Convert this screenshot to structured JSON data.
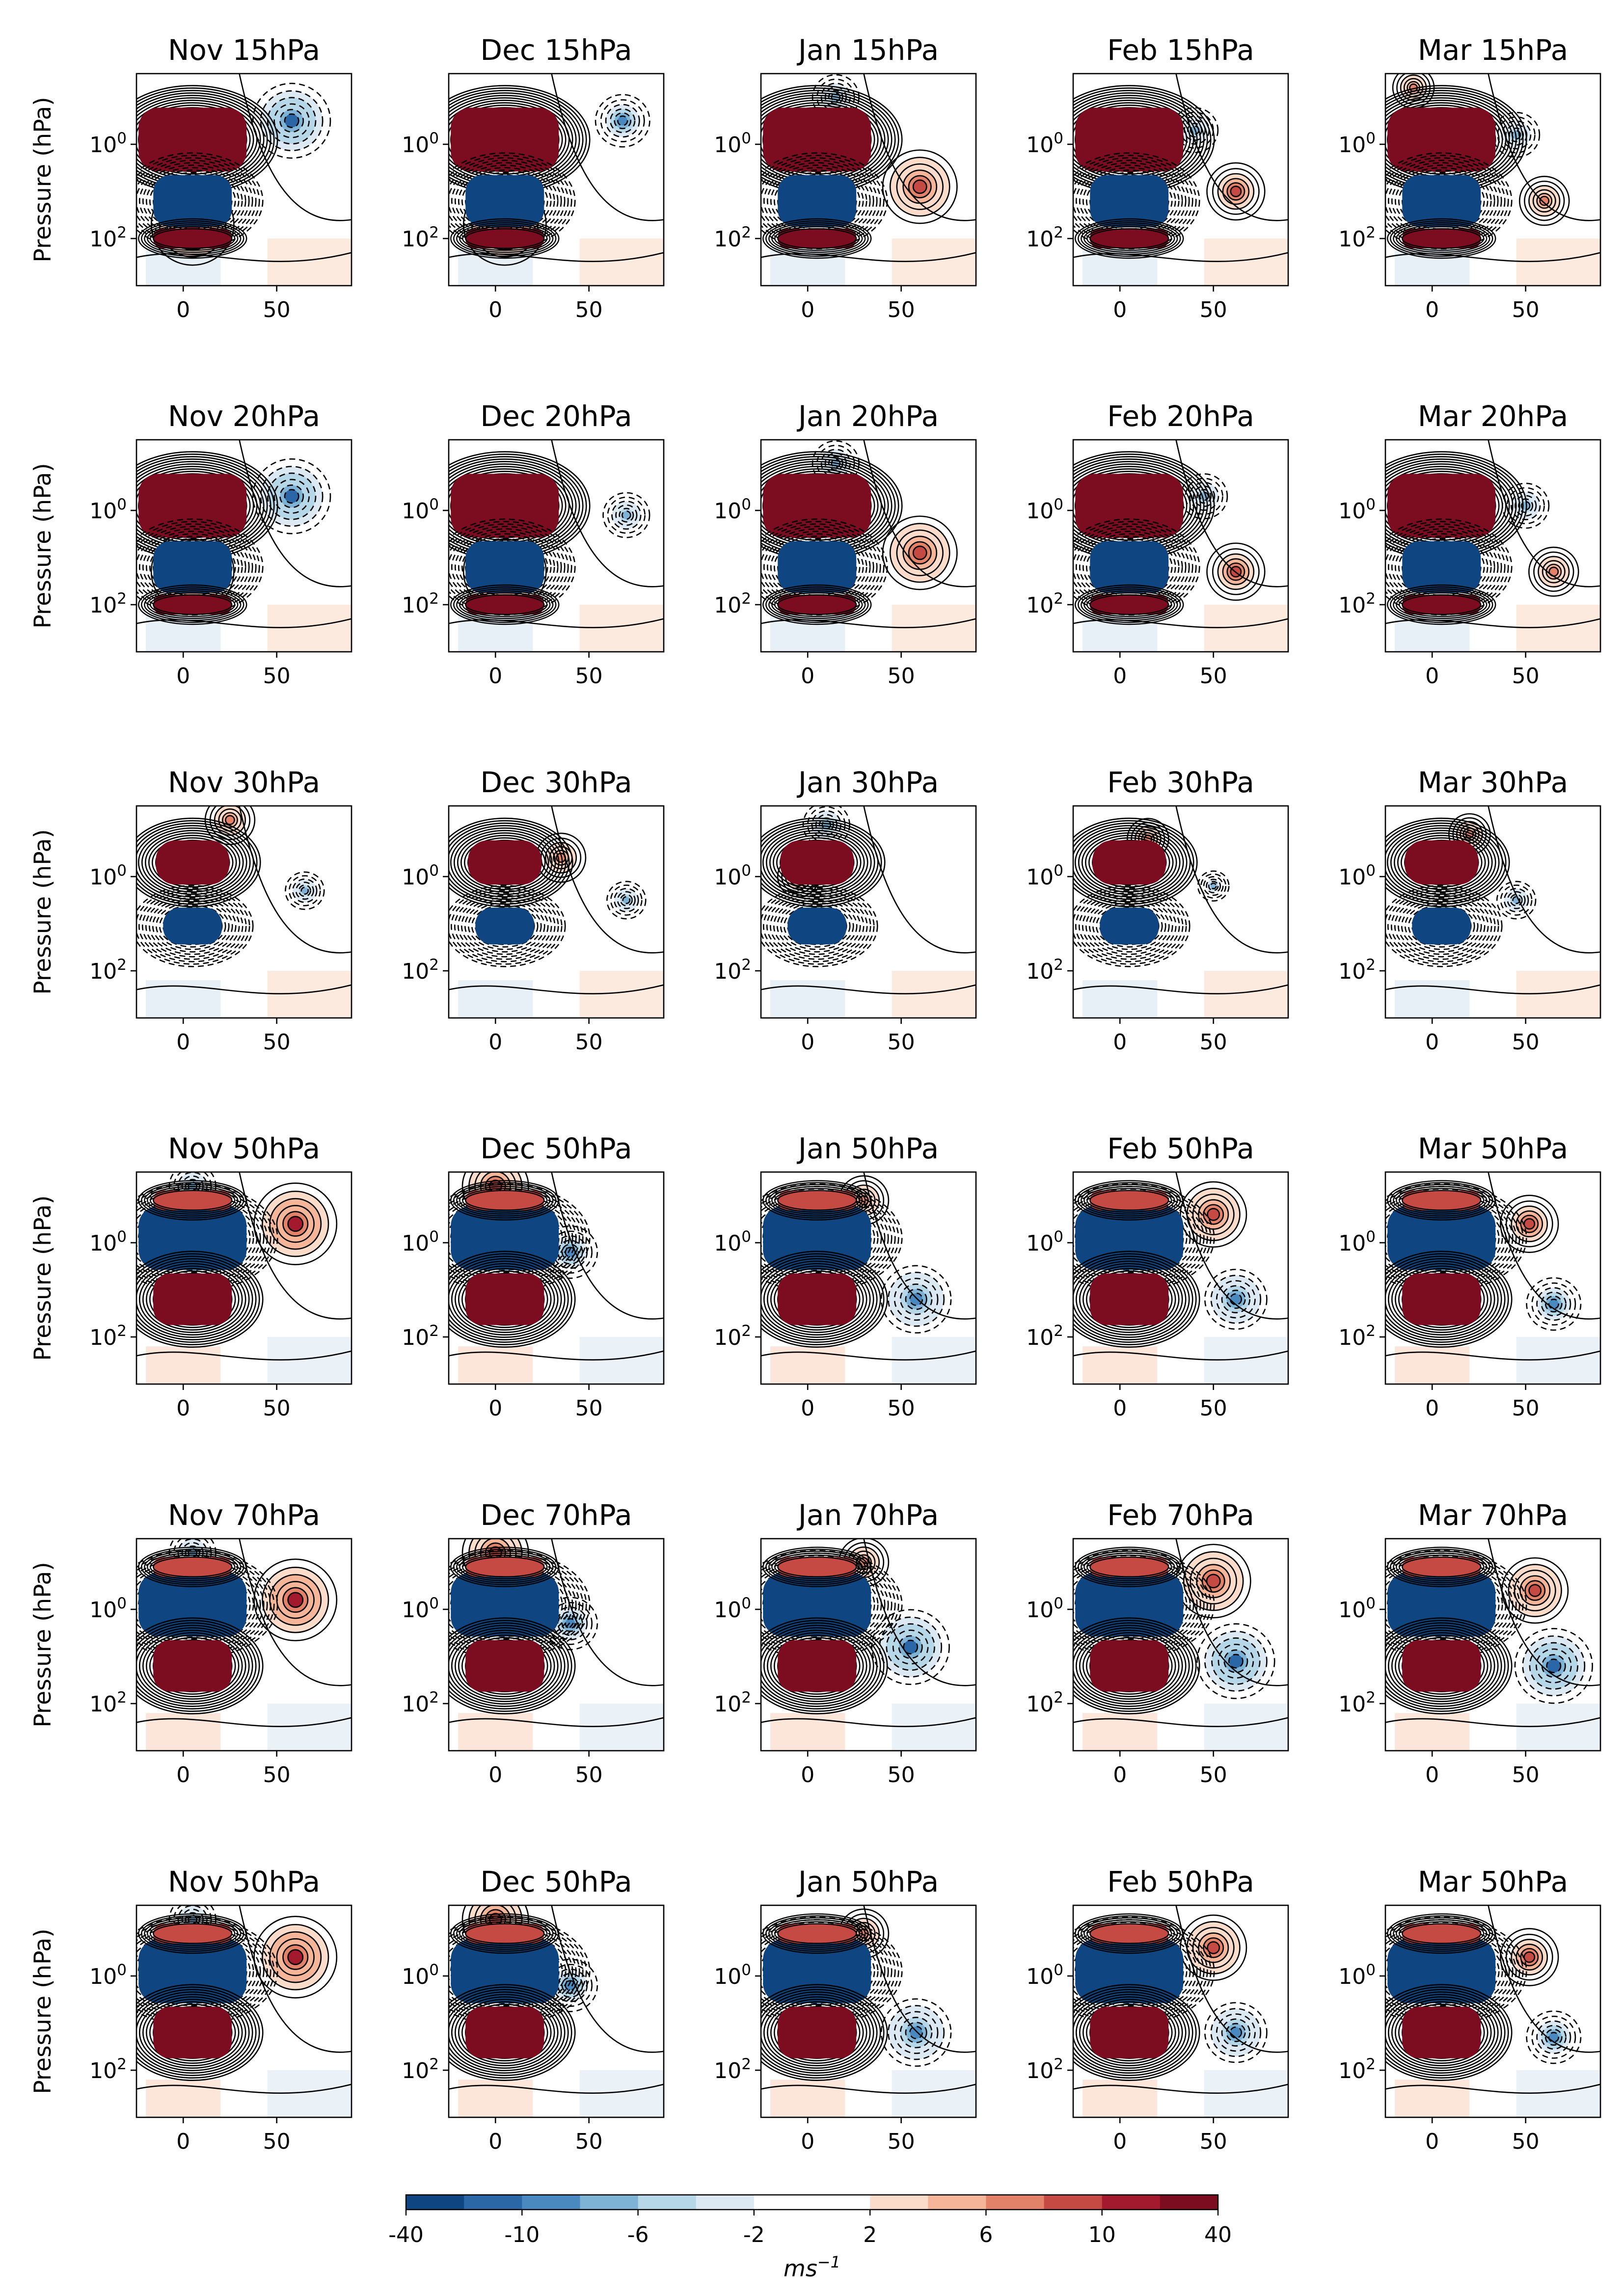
{
  "figure": {
    "colorbar": {
      "ticks": [
        "-40",
        "-10",
        "-6",
        "-2",
        "2",
        "6",
        "10",
        "40"
      ],
      "label_base": "ms",
      "label_exp": "−1",
      "levels": 14,
      "colors": [
        "#0f4580",
        "#2b66a6",
        "#4a89c0",
        "#7eb3d6",
        "#b6d7e8",
        "#dde9f2",
        "#ffffff",
        "#ffffff",
        "#fbdcca",
        "#f4b599",
        "#e28268",
        "#c54a43",
        "#a3192d",
        "#7c0c1f"
      ]
    },
    "y_label": "Pressure (hPa)",
    "x_ticks": [
      "0",
      "50"
    ],
    "y_ticks": [
      {
        "base": "10",
        "exp": "0"
      },
      {
        "base": "10",
        "exp": "2"
      }
    ]
  },
  "chart_data": {
    "type": "contour",
    "grid": "6x5",
    "xlim": [
      -25,
      90
    ],
    "ylim_log10_hPa": [
      -1.5,
      3
    ],
    "panels": [
      {
        "title": "Nov 15hPa",
        "row": 0,
        "col": 0,
        "qbo_sign": 1,
        "west": [
          [
            5,
            1.7,
            1
          ]
        ],
        "east": [
          [
            58,
            -0.5,
            -1
          ]
        ]
      },
      {
        "title": "Dec 15hPa",
        "row": 0,
        "col": 1,
        "qbo_sign": 1,
        "west": [
          [
            5,
            1.7,
            1
          ]
        ],
        "east": [
          [
            68,
            -0.5,
            -0.7
          ]
        ]
      },
      {
        "title": "Jan 15hPa",
        "row": 0,
        "col": 2,
        "qbo_sign": 1,
        "west": [
          [
            60,
            0.9,
            0.9
          ]
        ],
        "east": [
          [
            15,
            -1,
            -0.6
          ]
        ]
      },
      {
        "title": "Feb 15hPa",
        "row": 0,
        "col": 3,
        "qbo_sign": 1,
        "west": [
          [
            62,
            1.0,
            0.7
          ]
        ],
        "east": [
          [
            40,
            -0.3,
            -0.6
          ]
        ]
      },
      {
        "title": "Mar 15hPa",
        "row": 0,
        "col": 4,
        "qbo_sign": 1,
        "west": [
          [
            60,
            1.2,
            0.6
          ],
          [
            -10,
            -1.2,
            0.5
          ]
        ],
        "east": [
          [
            45,
            -0.2,
            -0.6
          ]
        ]
      },
      {
        "title": "Nov 20hPa",
        "row": 1,
        "col": 0,
        "qbo_sign": 1,
        "west": [
          [
            5,
            1.3,
            1
          ]
        ],
        "east": [
          [
            58,
            -0.3,
            -1
          ]
        ]
      },
      {
        "title": "Dec 20hPa",
        "row": 1,
        "col": 1,
        "qbo_sign": 1,
        "west": [
          [
            5,
            1.3,
            1
          ]
        ],
        "east": [
          [
            70,
            0.1,
            -0.6
          ]
        ]
      },
      {
        "title": "Jan 20hPa",
        "row": 1,
        "col": 2,
        "qbo_sign": 1,
        "west": [
          [
            60,
            0.9,
            0.9
          ]
        ],
        "east": [
          [
            15,
            -1,
            -0.6
          ]
        ]
      },
      {
        "title": "Feb 20hPa",
        "row": 1,
        "col": 3,
        "qbo_sign": 1,
        "west": [
          [
            62,
            1.3,
            0.7
          ]
        ],
        "east": [
          [
            45,
            -0.3,
            -0.6
          ]
        ]
      },
      {
        "title": "Mar 20hPa",
        "row": 1,
        "col": 4,
        "qbo_sign": 1,
        "west": [
          [
            65,
            1.3,
            0.6
          ]
        ],
        "east": [
          [
            50,
            -0.1,
            -0.6
          ]
        ]
      },
      {
        "title": "Nov 30hPa",
        "row": 2,
        "col": 0,
        "qbo_sign": 0.7,
        "west": [
          [
            25,
            -1.2,
            0.6
          ]
        ],
        "east": [
          [
            65,
            0.3,
            -0.5
          ]
        ]
      },
      {
        "title": "Dec 30hPa",
        "row": 2,
        "col": 1,
        "qbo_sign": 0.7,
        "west": [
          [
            35,
            -0.4,
            0.6
          ]
        ],
        "east": [
          [
            70,
            0.5,
            -0.5
          ]
        ]
      },
      {
        "title": "Jan 30hPa",
        "row": 2,
        "col": 2,
        "qbo_sign": 0.7,
        "west": [
          [
            -5,
            0.0,
            0.5
          ]
        ],
        "east": [
          [
            10,
            -1.1,
            -0.6
          ]
        ]
      },
      {
        "title": "Feb 30hPa",
        "row": 2,
        "col": 3,
        "qbo_sign": 0.7,
        "west": [
          [
            15,
            -0.8,
            0.5
          ]
        ],
        "east": [
          [
            50,
            0.2,
            -0.4
          ]
        ]
      },
      {
        "title": "Mar 30hPa",
        "row": 2,
        "col": 4,
        "qbo_sign": 0.7,
        "west": [
          [
            20,
            -0.9,
            0.5
          ]
        ],
        "east": [
          [
            45,
            0.5,
            -0.5
          ]
        ]
      },
      {
        "title": "Nov 50hPa",
        "row": 3,
        "col": 0,
        "qbo_sign": -1,
        "west": [
          [
            60,
            -0.4,
            1
          ]
        ],
        "east": [
          [
            5,
            -1.2,
            -0.6
          ]
        ]
      },
      {
        "title": "Dec 50hPa",
        "row": 3,
        "col": 1,
        "qbo_sign": -1,
        "west": [
          [
            0,
            -1.2,
            0.8
          ]
        ],
        "east": [
          [
            40,
            0.2,
            -0.7
          ]
        ]
      },
      {
        "title": "Jan 50hPa",
        "row": 3,
        "col": 2,
        "qbo_sign": -1,
        "west": [
          [
            30,
            -0.9,
            0.6
          ]
        ],
        "east": [
          [
            58,
            1.2,
            -0.9
          ]
        ]
      },
      {
        "title": "Feb 50hPa",
        "row": 3,
        "col": 3,
        "qbo_sign": -1,
        "west": [
          [
            50,
            -0.6,
            0.8
          ]
        ],
        "east": [
          [
            62,
            1.2,
            -0.8
          ]
        ]
      },
      {
        "title": "Mar 50hPa",
        "row": 3,
        "col": 4,
        "qbo_sign": -1,
        "west": [
          [
            52,
            -0.4,
            0.7
          ]
        ],
        "east": [
          [
            65,
            1.3,
            -0.7
          ]
        ]
      },
      {
        "title": "Nov 70hPa",
        "row": 4,
        "col": 0,
        "qbo_sign": -1,
        "west": [
          [
            60,
            -0.2,
            1
          ]
        ],
        "east": [
          [
            5,
            -1.2,
            -0.6
          ]
        ]
      },
      {
        "title": "Dec 70hPa",
        "row": 4,
        "col": 1,
        "qbo_sign": -1,
        "west": [
          [
            0,
            -1.2,
            0.8
          ]
        ],
        "east": [
          [
            40,
            0.3,
            -0.7
          ]
        ]
      },
      {
        "title": "Jan 70hPa",
        "row": 4,
        "col": 2,
        "qbo_sign": -1,
        "west": [
          [
            30,
            -1.0,
            0.6
          ]
        ],
        "east": [
          [
            55,
            0.8,
            -1
          ]
        ]
      },
      {
        "title": "Feb 70hPa",
        "row": 4,
        "col": 3,
        "qbo_sign": -1,
        "west": [
          [
            50,
            -0.6,
            0.9
          ]
        ],
        "east": [
          [
            62,
            1.1,
            -1
          ]
        ]
      },
      {
        "title": "Mar 70hPa",
        "row": 4,
        "col": 4,
        "qbo_sign": -1,
        "west": [
          [
            55,
            -0.4,
            0.8
          ]
        ],
        "east": [
          [
            65,
            1.2,
            -1
          ]
        ]
      },
      {
        "title": "Nov 50hPa",
        "row": 5,
        "col": 0,
        "qbo_sign": -1,
        "west": [
          [
            60,
            -0.4,
            1
          ]
        ],
        "east": [
          [
            5,
            -1.2,
            -0.6
          ]
        ]
      },
      {
        "title": "Dec 50hPa",
        "row": 5,
        "col": 1,
        "qbo_sign": -1,
        "west": [
          [
            0,
            -1.2,
            0.8
          ]
        ],
        "east": [
          [
            40,
            0.2,
            -0.7
          ]
        ]
      },
      {
        "title": "Jan 50hPa",
        "row": 5,
        "col": 2,
        "qbo_sign": -1,
        "west": [
          [
            30,
            -0.9,
            0.6
          ]
        ],
        "east": [
          [
            58,
            1.2,
            -0.9
          ]
        ]
      },
      {
        "title": "Feb 50hPa",
        "row": 5,
        "col": 3,
        "qbo_sign": -1,
        "west": [
          [
            50,
            -0.6,
            0.8
          ]
        ],
        "east": [
          [
            62,
            1.2,
            -0.8
          ]
        ]
      },
      {
        "title": "Mar 50hPa",
        "row": 5,
        "col": 4,
        "qbo_sign": -1,
        "west": [
          [
            52,
            -0.4,
            0.7
          ]
        ],
        "east": [
          [
            65,
            1.3,
            -0.7
          ]
        ]
      }
    ]
  }
}
